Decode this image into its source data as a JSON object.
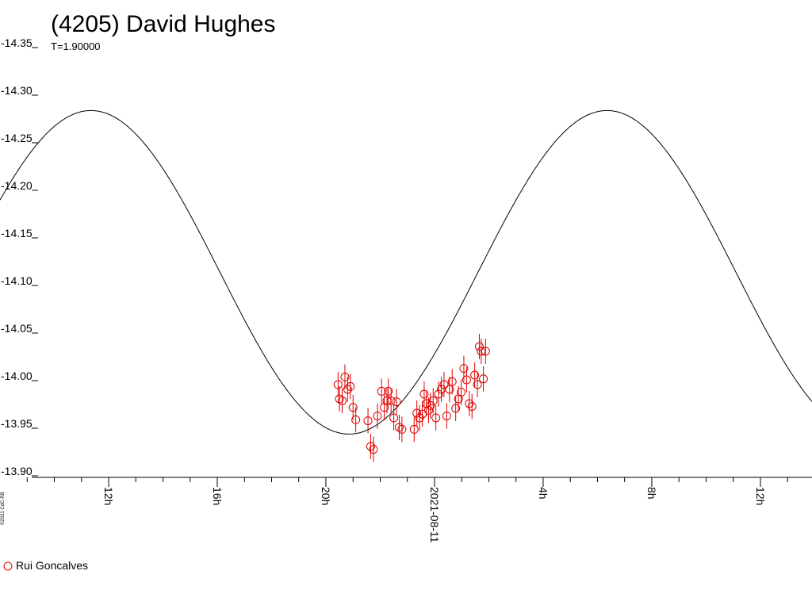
{
  "chart_data": {
    "type": "scatter",
    "title": "(4205) David Hughes",
    "subtitle": "T=1.90000",
    "copyright": "©2021 CdC-RB",
    "y_ticks": [
      "-14.35",
      "-14.30",
      "-14.25",
      "-14.20",
      "-14.15",
      "-14.10",
      "-14.05",
      "-14.00",
      "-13.95",
      "-13.90"
    ],
    "ylim": [
      -14.35,
      -13.9
    ],
    "y_inverted": true,
    "x_units": "hours from 2021-08-11 00:00",
    "xlim": [
      -16.0,
      13.9
    ],
    "x_tick_labels": [
      {
        "x": -12,
        "label": "12h"
      },
      {
        "x": -8,
        "label": "16h"
      },
      {
        "x": -4,
        "label": "20h"
      },
      {
        "x": 0,
        "label": "2021-08-11"
      },
      {
        "x": 4,
        "label": "4h"
      },
      {
        "x": 8,
        "label": "8h"
      },
      {
        "x": 12,
        "label": "12h"
      }
    ],
    "model_curve": {
      "period_hours": 19.0,
      "mid": -14.108,
      "amplitude": 0.17,
      "max_at_hours": -12.65
    },
    "series": [
      {
        "name": "Rui Goncalves",
        "color": "#e00000",
        "x": [
          -3.55,
          -3.5,
          -3.4,
          -3.3,
          -3.2,
          -3.1,
          -3.0,
          -2.9,
          -2.45,
          -2.35,
          -2.25,
          -2.1,
          -1.95,
          -1.85,
          -1.75,
          -1.7,
          -1.6,
          -1.5,
          -1.4,
          -1.3,
          -1.2,
          -0.75,
          -0.65,
          -0.55,
          -0.45,
          -0.38,
          -0.3,
          -0.22,
          -0.15,
          -0.05,
          0.05,
          0.15,
          0.25,
          0.35,
          0.45,
          0.55,
          0.65,
          0.78,
          0.88,
          0.98,
          1.08,
          1.18,
          1.28,
          1.38,
          1.48,
          1.58,
          1.65,
          1.72,
          1.8,
          1.88
        ],
        "y": [
          -13.99,
          -13.975,
          -13.973,
          -13.998,
          -13.985,
          -13.988,
          -13.966,
          -13.953,
          -13.952,
          -13.925,
          -13.922,
          -13.957,
          -13.983,
          -13.966,
          -13.973,
          -13.983,
          -13.973,
          -13.955,
          -13.972,
          -13.945,
          -13.943,
          -13.943,
          -13.96,
          -13.955,
          -13.959,
          -13.98,
          -13.97,
          -13.963,
          -13.968,
          -13.973,
          -13.955,
          -13.98,
          -13.985,
          -13.99,
          -13.957,
          -13.985,
          -13.993,
          -13.965,
          -13.975,
          -13.982,
          -14.007,
          -13.995,
          -13.97,
          -13.967,
          -14.0,
          -13.99,
          -14.03,
          -14.025,
          -13.996,
          -14.025
        ]
      }
    ],
    "legend": {
      "position": "bottom-left"
    }
  }
}
